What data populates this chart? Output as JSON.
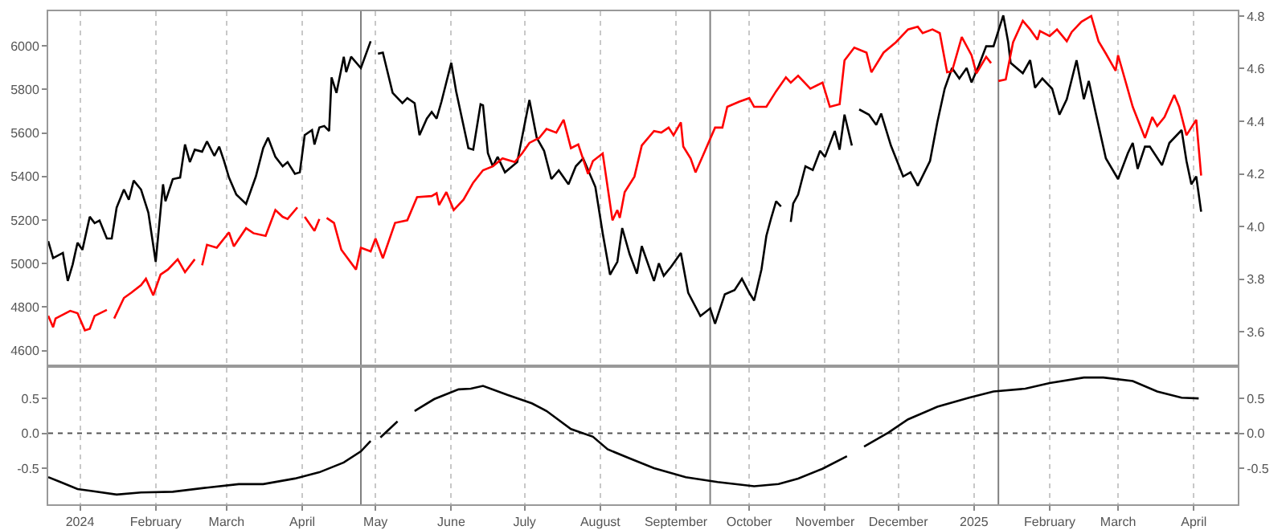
{
  "chart_data": [
    {
      "type": "line",
      "xlim": [
        "2023-12-19",
        "2025-04-19"
      ],
      "ylim": [
        4536,
        6159
      ],
      "yticks": [
        4600,
        4800,
        5000,
        5200,
        5400,
        5600,
        5800,
        6000
      ],
      "y2lim": [
        3.476,
        4.818
      ],
      "y2ticks": [
        3.6,
        3.8,
        {
          "value": 4.0,
          "label": "4.0"
        },
        4.2,
        4.4,
        4.6,
        4.8
      ],
      "xticks": [
        {
          "value": "2024-01-01",
          "label": null
        },
        {
          "value": "2024-02-01",
          "label": null
        },
        {
          "value": "2024-03-01",
          "label": null
        },
        {
          "value": "2024-04-01",
          "label": null
        },
        {
          "value": "2024-05-01",
          "label": null
        },
        {
          "value": "2024-06-01",
          "label": null
        },
        {
          "value": "2024-07-01",
          "label": null
        },
        {
          "value": "2024-08-01",
          "label": null
        },
        {
          "value": "2024-09-01",
          "label": null
        },
        {
          "value": "2024-10-01",
          "label": null
        },
        {
          "value": "2024-11-01",
          "label": null
        },
        {
          "value": "2024-12-01",
          "label": null
        },
        {
          "value": "2025-01-01",
          "label": null
        },
        {
          "value": "2025-02-01",
          "label": null
        },
        {
          "value": "2025-03-01",
          "label": null
        },
        {
          "value": "2025-04-01",
          "label": null
        }
      ],
      "tick_labels": "y",
      "grid": "x",
      "ref_lines": [
        {
          "axis": "x",
          "value": "2024-04-25",
          "color": "#808080"
        },
        {
          "axis": "x",
          "value": "2024-09-15",
          "color": "#808080"
        },
        {
          "axis": "x",
          "value": "2025-01-11",
          "color": "#808080"
        }
      ],
      "series": [
        {
          "color": "#000000",
          "axis": "y",
          "x": [
            "2023-12-19",
            "2023-12-21",
            "2023-12-25",
            "2023-12-27",
            "2023-12-29",
            "2023-12-31",
            "2024-01-02",
            "2024-01-05",
            "2024-01-07",
            "2024-01-09",
            "2024-01-12",
            "2024-01-14",
            "2024-01-16",
            "2024-01-19",
            "2024-01-21",
            "2024-01-23",
            "2024-01-26",
            "2024-01-29",
            "2024-02-01",
            "2024-02-04",
            "2024-02-05",
            "2024-02-08",
            "2024-02-11",
            "2024-02-13",
            "2024-02-15",
            "2024-02-17",
            "2024-02-20",
            "2024-02-22",
            "2024-02-25",
            "2024-02-27",
            "2024-02-29",
            "2024-03-02",
            "2024-03-05",
            "2024-03-09",
            "2024-03-13",
            "2024-03-16",
            "2024-03-18",
            "2024-03-21",
            "2024-03-24",
            "2024-03-26",
            "2024-03-29",
            "2024-03-31",
            "2024-04-02",
            "2024-04-05",
            "2024-04-06",
            "2024-04-08",
            "2024-04-10",
            "2024-04-12",
            "2024-04-13",
            "2024-04-15",
            "2024-04-18",
            "2024-04-19",
            "2024-04-21",
            "2024-04-25",
            "2024-04-29",
            "2024-04-30",
            "2024-05-02",
            "2024-05-04",
            "2024-05-08",
            "2024-05-12",
            "2024-05-14",
            "2024-05-17",
            "2024-05-19",
            "2024-05-22",
            "2024-05-24",
            "2024-05-26",
            "2024-05-28",
            "2024-06-01",
            "2024-06-03",
            "2024-06-08",
            "2024-06-10",
            "2024-06-13",
            "2024-06-14",
            "2024-06-16",
            "2024-06-18",
            "2024-06-20",
            "2024-06-23",
            "2024-06-28",
            "2024-07-03",
            "2024-07-06",
            "2024-07-09",
            "2024-07-12",
            "2024-07-15",
            "2024-07-19",
            "2024-07-22",
            "2024-07-25",
            "2024-07-30",
            "2024-08-02",
            "2024-08-05",
            "2024-08-08",
            "2024-08-10",
            "2024-08-13",
            "2024-08-16",
            "2024-08-18",
            "2024-08-23",
            "2024-08-25",
            "2024-08-27",
            "2024-08-30",
            "2024-09-03",
            "2024-09-06",
            "2024-09-11",
            "2024-09-15",
            "2024-09-17",
            "2024-09-21",
            "2024-09-25",
            "2024-09-28",
            "2024-10-01",
            "2024-10-03",
            "2024-10-06",
            "2024-10-08",
            "2024-10-10",
            "2024-10-12",
            "2024-10-14",
            "2024-10-16",
            "2024-10-18",
            "2024-10-19",
            "2024-10-21",
            "2024-10-24",
            "2024-10-27",
            "2024-10-30",
            "2024-11-01",
            "2024-11-05",
            "2024-11-07",
            "2024-11-09",
            "2024-11-12",
            "2024-11-13",
            "2024-11-15",
            "2024-11-19",
            "2024-11-22",
            "2024-11-24",
            "2024-11-28",
            "2024-12-03",
            "2024-12-06",
            "2024-12-09",
            "2024-12-14",
            "2024-12-17",
            "2024-12-20",
            "2024-12-23",
            "2024-12-26",
            "2024-12-29",
            "2024-12-31",
            "2025-01-03",
            "2025-01-06",
            "2025-01-09",
            "2025-01-13",
            "2025-01-15",
            "2025-01-16",
            "2025-01-21",
            "2025-01-24",
            "2025-01-26",
            "2025-01-29",
            "2025-02-02",
            "2025-02-05",
            "2025-02-08",
            "2025-02-12",
            "2025-02-15",
            "2025-02-17",
            "2025-02-20",
            "2025-02-24",
            "2025-03-01",
            "2025-03-05",
            "2025-03-07",
            "2025-03-09",
            "2025-03-12",
            "2025-03-14",
            "2025-03-19",
            "2025-03-22",
            "2025-03-27",
            "2025-03-29",
            "2025-03-31",
            "2025-04-02",
            "2025-04-04"
          ],
          "values": [
            5103,
            5025,
            5049,
            4920,
            4996,
            5096,
            5063,
            5215,
            5186,
            5198,
            5115,
            5115,
            5257,
            5340,
            5293,
            5381,
            5340,
            5234,
            5008,
            5364,
            5286,
            5388,
            5395,
            5547,
            5466,
            5523,
            5514,
            5561,
            5495,
            5537,
            5471,
            5395,
            5317,
            5274,
            5400,
            5530,
            5578,
            5490,
            5447,
            5466,
            5412,
            5419,
            5590,
            5613,
            5547,
            5625,
            5632,
            5609,
            5855,
            5784,
            5950,
            5879,
            5950,
            5898,
            6021,
            null,
            5964,
            5969,
            5784,
            5737,
            5760,
            5737,
            5590,
            5666,
            5696,
            5666,
            5744,
            5922,
            5791,
            5530,
            5523,
            5732,
            5727,
            5507,
            5447,
            5490,
            5419,
            5466,
            5751,
            5578,
            5518,
            5388,
            5428,
            5364,
            5447,
            5483,
            5352,
            5139,
            4949,
            5008,
            5163,
            5044,
            4954,
            5080,
            4920,
            5001,
            4944,
            4985,
            5049,
            4866,
            4759,
            4794,
            4724,
            4859,
            4878,
            4930,
            4866,
            4830,
            4973,
            5127,
            5210,
            5286,
            5262,
            null,
            5191,
            5276,
            5317,
            5447,
            5430,
            5518,
            5490,
            5609,
            5523,
            5684,
            5542,
            null,
            5708,
            5684,
            5637,
            5689,
            5542,
            5400,
            5419,
            5357,
            5471,
            5649,
            5803,
            5898,
            5850,
            5898,
            5832,
            5910,
            5998,
            5998,
            6140,
            6017,
            5922,
            5874,
            5934,
            5808,
            5850,
            5803,
            5684,
            5755,
            5934,
            5755,
            5839,
            5684,
            5483,
            5388,
            5507,
            5554,
            5435,
            5537,
            5537,
            5452,
            5554,
            5613,
            5471,
            5364,
            5400,
            5238
          ]
        },
        {
          "color": "#ff0000",
          "axis": "y2",
          "x": [
            "2023-12-19",
            "2023-12-21",
            "2023-12-22",
            "2023-12-28",
            "2023-12-31",
            "2024-01-03",
            "2024-01-05",
            "2024-01-07",
            "2024-01-12",
            "2024-01-13",
            "2024-01-15",
            "2024-01-19",
            "2024-01-22",
            "2024-01-26",
            "2024-01-28",
            "2024-01-31",
            "2024-02-03",
            "2024-02-06",
            "2024-02-10",
            "2024-02-13",
            "2024-02-17",
            "2024-02-18",
            "2024-02-20",
            "2024-02-22",
            "2024-02-26",
            "2024-02-29",
            "2024-03-02",
            "2024-03-04",
            "2024-03-09",
            "2024-03-12",
            "2024-03-17",
            "2024-03-21",
            "2024-03-24",
            "2024-03-26",
            "2024-03-30",
            "2024-03-31",
            "2024-04-02",
            "2024-04-06",
            "2024-04-08",
            "2024-04-09",
            "2024-04-11",
            "2024-04-14",
            "2024-04-17",
            "2024-04-23",
            "2024-04-25",
            "2024-04-29",
            "2024-05-01",
            "2024-05-04",
            "2024-05-09",
            "2024-05-14",
            "2024-05-18",
            "2024-05-24",
            "2024-05-26",
            "2024-05-27",
            "2024-05-30",
            "2024-06-02",
            "2024-06-06",
            "2024-06-10",
            "2024-06-14",
            "2024-06-18",
            "2024-06-22",
            "2024-06-27",
            "2024-06-30",
            "2024-07-03",
            "2024-07-07",
            "2024-07-10",
            "2024-07-14",
            "2024-07-17",
            "2024-07-20",
            "2024-07-23",
            "2024-07-27",
            "2024-07-29",
            "2024-08-02",
            "2024-08-06",
            "2024-08-08",
            "2024-08-09",
            "2024-08-11",
            "2024-08-15",
            "2024-08-18",
            "2024-08-23",
            "2024-08-26",
            "2024-08-29",
            "2024-08-31",
            "2024-09-03",
            "2024-09-04",
            "2024-09-07",
            "2024-09-09",
            "2024-09-12",
            "2024-09-17",
            "2024-09-20",
            "2024-09-22",
            "2024-09-27",
            "2024-10-01",
            "2024-10-03",
            "2024-10-08",
            "2024-10-12",
            "2024-10-16",
            "2024-10-18",
            "2024-10-21",
            "2024-10-26",
            "2024-10-31",
            "2024-11-03",
            "2024-11-07",
            "2024-11-09",
            "2024-11-13",
            "2024-11-18",
            "2024-11-20",
            "2024-11-25",
            "2024-11-30",
            "2024-12-05",
            "2024-12-09",
            "2024-12-11",
            "2024-12-15",
            "2024-12-18",
            "2024-12-21",
            "2024-12-23",
            "2024-12-27",
            "2024-12-31",
            "2025-01-02",
            "2025-01-06",
            "2025-01-08",
            "2025-01-10",
            "2025-01-11",
            "2025-01-14",
            "2025-01-17",
            "2025-01-21",
            "2025-01-24",
            "2025-01-27",
            "2025-01-28",
            "2025-02-01",
            "2025-02-04",
            "2025-02-08",
            "2025-02-10",
            "2025-02-14",
            "2025-02-18",
            "2025-02-21",
            "2025-02-24",
            "2025-02-28",
            "2025-03-01",
            "2025-03-04",
            "2025-03-07",
            "2025-03-12",
            "2025-03-15",
            "2025-03-17",
            "2025-03-20",
            "2025-03-24",
            "2025-03-26",
            "2025-03-29",
            "2025-04-02",
            "2025-04-04"
          ],
          "values": [
            3.661,
            3.618,
            3.651,
            3.68,
            3.671,
            3.606,
            3.612,
            3.661,
            3.684,
            null,
            3.651,
            3.729,
            3.749,
            3.778,
            3.802,
            3.739,
            3.818,
            3.837,
            3.876,
            3.827,
            3.876,
            null,
            3.853,
            3.931,
            3.92,
            3.955,
            3.978,
            3.925,
            3.994,
            3.975,
            3.965,
            4.063,
            4.037,
            4.029,
            4.073,
            null,
            4.037,
            3.984,
            4.029,
            null,
            4.033,
            4.014,
            3.912,
            3.837,
            3.92,
            3.906,
            3.955,
            3.88,
            4.014,
            4.024,
            4.112,
            4.116,
            4.127,
            4.082,
            4.131,
            4.063,
            4.102,
            4.167,
            4.214,
            4.229,
            4.259,
            4.245,
            4.278,
            4.318,
            4.337,
            4.371,
            4.357,
            4.406,
            4.298,
            4.312,
            4.2,
            4.249,
            4.278,
            4.024,
            4.063,
            4.033,
            4.131,
            4.19,
            4.308,
            4.363,
            4.357,
            4.376,
            4.347,
            4.396,
            4.304,
            4.259,
            4.206,
            4.269,
            4.376,
            4.376,
            4.455,
            4.475,
            4.488,
            4.455,
            4.455,
            4.514,
            4.567,
            4.547,
            4.573,
            4.524,
            4.547,
            4.455,
            4.465,
            4.631,
            4.68,
            4.661,
            4.586,
            4.661,
            4.7,
            4.749,
            4.759,
            4.735,
            4.749,
            4.735,
            4.586,
            4.59,
            4.72,
            4.651,
            4.582,
            4.645,
            4.621,
            null,
            4.553,
            4.559,
            4.7,
            4.782,
            4.749,
            4.71,
            4.743,
            4.724,
            4.749,
            4.704,
            4.739,
            4.778,
            4.8,
            4.704,
            4.657,
            4.592,
            4.651,
            4.553,
            4.455,
            4.337,
            4.416,
            4.382,
            4.416,
            4.5,
            4.455,
            4.347,
            4.406,
            4.194
          ]
        }
      ]
    },
    {
      "type": "line",
      "xlim": [
        "2023-12-19",
        "2025-04-19"
      ],
      "ylim": [
        -1.02,
        0.94
      ],
      "yticks": [
        -0.5,
        {
          "value": 0,
          "label": "0.0"
        },
        0.5
      ],
      "y2lim": [
        -1.02,
        0.94
      ],
      "y2ticks": [
        -0.5,
        {
          "value": 0,
          "label": "0.0"
        },
        0.5
      ],
      "xticks": [
        {
          "value": "2024-01-01",
          "label": "2024"
        },
        {
          "value": "2024-02-01",
          "label": "February"
        },
        {
          "value": "2024-03-01",
          "label": "March"
        },
        {
          "value": "2024-04-01",
          "label": "April"
        },
        {
          "value": "2024-05-01",
          "label": "May"
        },
        {
          "value": "2024-06-01",
          "label": "June"
        },
        {
          "value": "2024-07-01",
          "label": "July"
        },
        {
          "value": "2024-08-01",
          "label": "August"
        },
        {
          "value": "2024-09-01",
          "label": "September"
        },
        {
          "value": "2024-10-01",
          "label": "October"
        },
        {
          "value": "2024-11-01",
          "label": "November"
        },
        {
          "value": "2024-12-01",
          "label": "December"
        },
        {
          "value": "2025-01-01",
          "label": "2025"
        },
        {
          "value": "2025-02-01",
          "label": "February"
        },
        {
          "value": "2025-03-01",
          "label": "March"
        },
        {
          "value": "2025-04-01",
          "label": "April"
        }
      ],
      "grid": "x",
      "ref_lines": [
        {
          "axis": "x",
          "value": "2024-04-25",
          "color": "#808080"
        },
        {
          "axis": "x",
          "value": "2024-09-15",
          "color": "#808080"
        },
        {
          "axis": "x",
          "value": "2025-01-11",
          "color": "#808080"
        },
        {
          "axis": "y",
          "value": 0,
          "color": "#555555",
          "line_style": "dotted"
        }
      ],
      "series": [
        {
          "color": "#000000",
          "x": [
            "2023-12-19",
            "2023-12-24",
            "2023-12-31",
            "2024-01-06",
            "2024-01-16",
            "2024-01-26",
            "2024-02-08",
            "2024-02-22",
            "2024-03-06",
            "2024-03-16",
            "2024-03-29",
            "2024-04-08",
            "2024-04-18",
            "2024-04-25",
            "2024-04-29",
            "2024-04-30",
            "2024-05-03",
            "2024-05-10",
            "2024-05-11",
            "2024-05-17",
            "2024-05-25",
            "2024-06-04",
            "2024-06-09",
            "2024-06-14",
            "2024-06-24",
            "2024-07-04",
            "2024-07-10",
            "2024-07-20",
            "2024-07-29",
            "2024-08-04",
            "2024-08-13",
            "2024-08-23",
            "2024-09-05",
            "2024-09-18",
            "2024-10-03",
            "2024-10-13",
            "2024-10-21",
            "2024-10-31",
            "2024-11-10",
            "2024-11-11",
            "2024-11-17",
            "2024-11-27",
            "2024-12-05",
            "2024-12-17",
            "2024-12-30",
            "2025-01-09",
            "2025-01-22",
            "2025-02-01",
            "2025-02-15",
            "2025-02-23",
            "2025-03-07",
            "2025-03-17",
            "2025-03-27",
            "2025-04-03"
          ],
          "values": [
            -0.63,
            -0.7,
            -0.8,
            -0.83,
            -0.88,
            -0.85,
            -0.84,
            -0.78,
            -0.73,
            -0.73,
            -0.65,
            -0.56,
            -0.42,
            -0.26,
            -0.11,
            null,
            -0.06,
            0.17,
            null,
            0.32,
            0.49,
            0.63,
            0.64,
            0.68,
            0.55,
            0.43,
            0.32,
            0.06,
            -0.05,
            -0.23,
            -0.36,
            -0.5,
            -0.63,
            -0.7,
            -0.76,
            -0.73,
            -0.65,
            -0.51,
            -0.33,
            null,
            -0.19,
            0.01,
            0.2,
            0.38,
            0.51,
            0.6,
            0.64,
            0.72,
            0.8,
            0.8,
            0.75,
            0.6,
            0.51,
            0.5
          ]
        }
      ]
    }
  ]
}
